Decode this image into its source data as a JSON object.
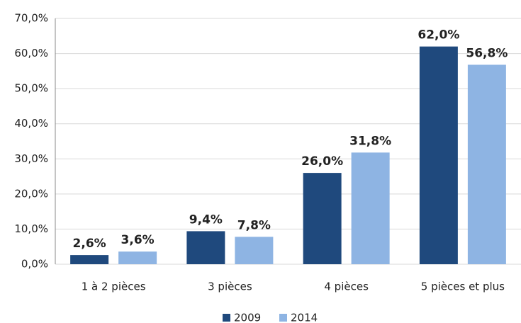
{
  "chart_data": {
    "type": "bar",
    "categories": [
      "1 à 2 pièces",
      "3 pièces",
      "4 pièces",
      "5 pièces et plus"
    ],
    "series": [
      {
        "name": "2009",
        "color": "#1f497d",
        "values": [
          2.6,
          9.4,
          26.0,
          62.0
        ],
        "value_labels": [
          "2,6%",
          "9,4%",
          "26,0%",
          "62,0%"
        ]
      },
      {
        "name": "2014",
        "color": "#8eb4e3",
        "values": [
          3.6,
          7.8,
          31.8,
          56.8
        ],
        "value_labels": [
          "3,6%",
          "7,8%",
          "31,8%",
          "56,8%"
        ]
      }
    ],
    "ylim": [
      0,
      70
    ],
    "yticks": [
      {
        "value": 0,
        "label": "0,0%"
      },
      {
        "value": 10,
        "label": "10,0%"
      },
      {
        "value": 20,
        "label": "20,0%"
      },
      {
        "value": 30,
        "label": "30,0%"
      },
      {
        "value": 40,
        "label": "40,0%"
      },
      {
        "value": 50,
        "label": "50,0%"
      },
      {
        "value": 60,
        "label": "60,0%"
      },
      {
        "value": 70,
        "label": "70,0%"
      }
    ],
    "grid": true,
    "legend": "bottom"
  }
}
